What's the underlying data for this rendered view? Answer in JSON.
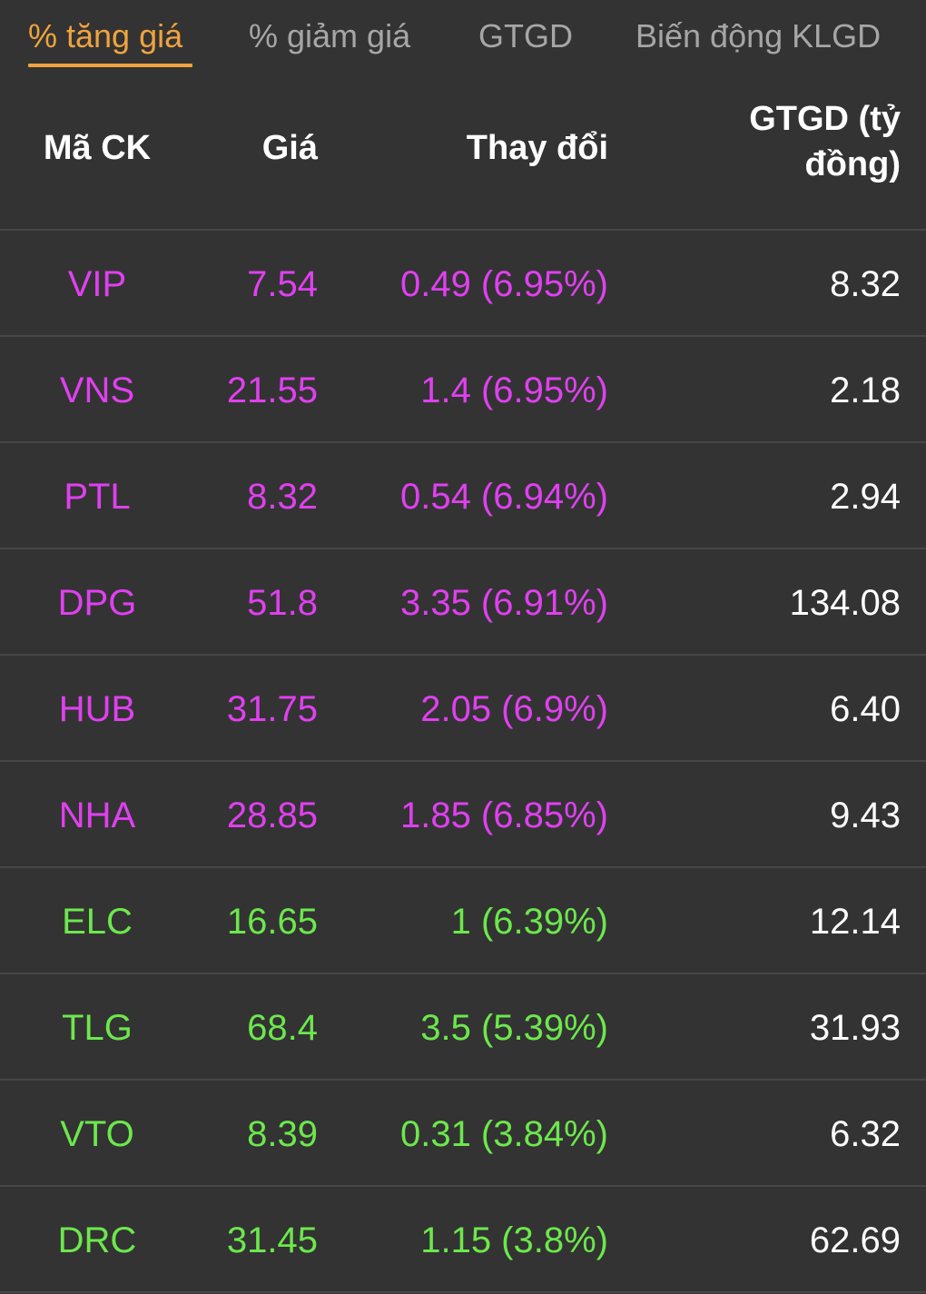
{
  "colors": {
    "active_tab": "#f0a33e",
    "inactive_tab": "#a6a6a6",
    "ceiling": "#e040f0",
    "increase": "#6ce84c",
    "value": "#ffffff",
    "background": "#333333"
  },
  "tabs": [
    {
      "label": "% tăng giá",
      "active": true
    },
    {
      "label": "% giảm giá",
      "active": false
    },
    {
      "label": "GTGD",
      "active": false
    },
    {
      "label": "Biến động KLGD",
      "active": false
    }
  ],
  "table": {
    "headers": {
      "code": "Mã CK",
      "price": "Giá",
      "change": "Thay đổi",
      "value_line1": "GTGD (tỷ",
      "value_line2": "đồng)"
    },
    "rows": [
      {
        "code": "VIP",
        "price": "7.54",
        "change": "0.49 (6.95%)",
        "value": "8.32",
        "status": "ceiling"
      },
      {
        "code": "VNS",
        "price": "21.55",
        "change": "1.4 (6.95%)",
        "value": "2.18",
        "status": "ceiling"
      },
      {
        "code": "PTL",
        "price": "8.32",
        "change": "0.54 (6.94%)",
        "value": "2.94",
        "status": "ceiling"
      },
      {
        "code": "DPG",
        "price": "51.8",
        "change": "3.35 (6.91%)",
        "value": "134.08",
        "status": "ceiling"
      },
      {
        "code": "HUB",
        "price": "31.75",
        "change": "2.05 (6.9%)",
        "value": "6.40",
        "status": "ceiling"
      },
      {
        "code": "NHA",
        "price": "28.85",
        "change": "1.85 (6.85%)",
        "value": "9.43",
        "status": "ceiling"
      },
      {
        "code": "ELC",
        "price": "16.65",
        "change": "1 (6.39%)",
        "value": "12.14",
        "status": "increase"
      },
      {
        "code": "TLG",
        "price": "68.4",
        "change": "3.5 (5.39%)",
        "value": "31.93",
        "status": "increase"
      },
      {
        "code": "VTO",
        "price": "8.39",
        "change": "0.31 (3.84%)",
        "value": "6.32",
        "status": "increase"
      },
      {
        "code": "DRC",
        "price": "31.45",
        "change": "1.15 (3.8%)",
        "value": "62.69",
        "status": "increase"
      }
    ]
  }
}
